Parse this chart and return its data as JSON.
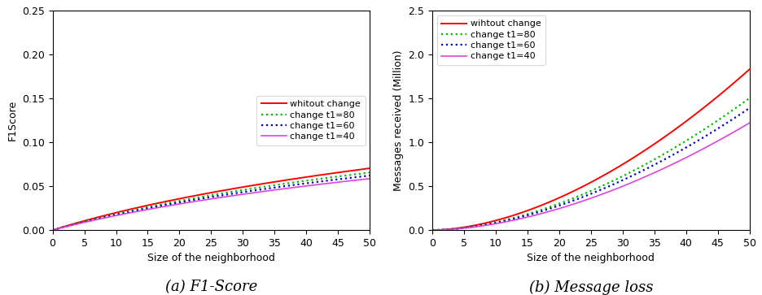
{
  "x_max": 50,
  "left_ylabel": "F1Score",
  "left_xlabel": "Size of the neighborhood",
  "left_caption": "(a) F1-Score",
  "left_ylim": [
    0,
    0.25
  ],
  "left_yticks": [
    0,
    0.05,
    0.1,
    0.15,
    0.2,
    0.25
  ],
  "left_xticks": [
    0,
    5,
    10,
    15,
    20,
    25,
    30,
    35,
    40,
    45,
    50
  ],
  "right_ylabel": "Messages received (Million)",
  "right_xlabel": "Size of the neighborhood",
  "right_caption": "(b) Message loss",
  "right_ylim": [
    0,
    2.5
  ],
  "right_yticks": [
    0,
    0.5,
    1.0,
    1.5,
    2.0,
    2.5
  ],
  "right_xticks": [
    0,
    5,
    10,
    15,
    20,
    25,
    30,
    35,
    40,
    45,
    50
  ],
  "f1_series": [
    {
      "label": "whitout change",
      "color": "#ff0000",
      "linestyle": "solid",
      "lw": 1.4,
      "a": 0.0805,
      "b": 0.028
    },
    {
      "label": "change t1=80",
      "color": "#00bb00",
      "linestyle": "dotted",
      "lw": 1.6,
      "a": 0.075,
      "b": 0.028
    },
    {
      "label": "change t1=60",
      "color": "#0000cc",
      "linestyle": "dotted",
      "lw": 1.6,
      "a": 0.071,
      "b": 0.028
    },
    {
      "label": "change t1=40",
      "color": "#dd44dd",
      "linestyle": "solid",
      "lw": 1.2,
      "a": 0.067,
      "b": 0.028
    }
  ],
  "msg_series": [
    {
      "label": "wihtout change",
      "color": "#ff0000",
      "linestyle": "solid",
      "lw": 1.4,
      "a": 0.00195,
      "p": 1.75
    },
    {
      "label": "change t1=80",
      "color": "#00bb00",
      "linestyle": "dotted",
      "lw": 1.6,
      "a": 0.0016,
      "p": 1.75
    },
    {
      "label": "change t1=60",
      "color": "#0000cc",
      "linestyle": "dotted",
      "lw": 1.6,
      "a": 0.00148,
      "p": 1.75
    },
    {
      "label": "change t1=40",
      "color": "#dd44dd",
      "linestyle": "solid",
      "lw": 1.2,
      "a": 0.0013,
      "p": 1.75
    }
  ],
  "legend_left_loc": "center right",
  "legend_right_loc": "upper left",
  "font_size": 9,
  "caption_fontsize": 13,
  "tick_fontsize": 9
}
